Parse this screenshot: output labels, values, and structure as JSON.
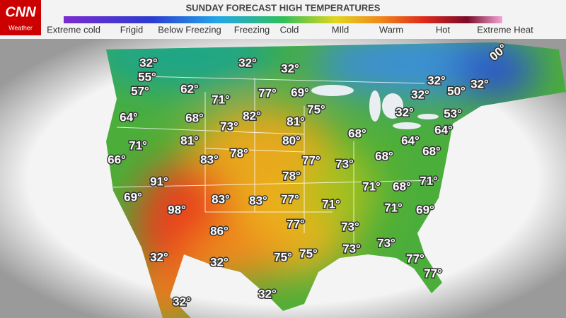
{
  "header": {
    "logo": "CNN",
    "logo_sub": "Weather",
    "title": "SUNDAY  FORECAST HIGH TEMPERATURES"
  },
  "legend": [
    "Extreme cold",
    "Frigid",
    "Below Freezing",
    "Freezing",
    "Cold",
    "MIld",
    "Warm",
    "Hot",
    "Extreme Heat"
  ],
  "temperatures": [
    "32°",
    "55°",
    "57°",
    "62°",
    "71°",
    "77°",
    "69°",
    "32°",
    "32°",
    "64°",
    "68°",
    "73°",
    "82°",
    "81°",
    "75°",
    "68°",
    "71°",
    "81°",
    "78°",
    "80°",
    "66°",
    "83°",
    "77°",
    "73°",
    "68°",
    "64°",
    "68°",
    "64°",
    "53°",
    "50°",
    "32°",
    "32°",
    "32°",
    "32°",
    "91°",
    "78°",
    "69°",
    "83°",
    "83°",
    "77°",
    "71°",
    "71°",
    "68°",
    "71°",
    "98°",
    "71°",
    "69°",
    "86°",
    "77°",
    "73°",
    "73°",
    "73°",
    "75°",
    "75°",
    "32°",
    "32°",
    "77°",
    "77°",
    "32°",
    "32°",
    "00°"
  ]
}
